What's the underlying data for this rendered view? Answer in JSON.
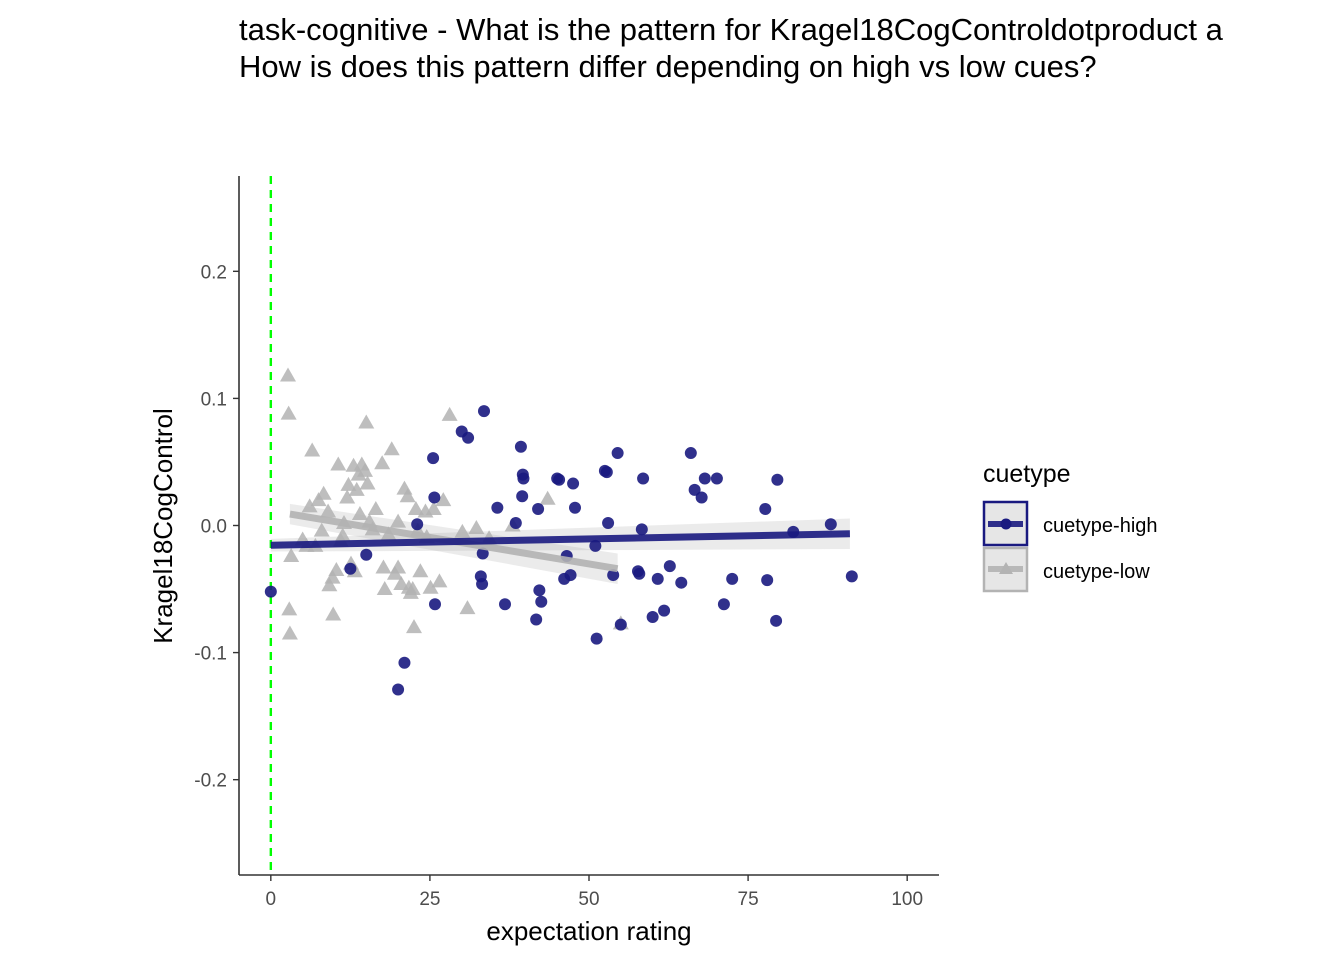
{
  "title": {
    "line1": "task-cognitive - What is the pattern for Kragel18CogControldotproduct a",
    "line2": "How is does this pattern differ depending on high vs low cues?"
  },
  "chart_data": {
    "type": "scatter",
    "title": "task-cognitive - What is the pattern for Kragel18CogControldotproduct a How is does this pattern differ depending on high vs low cues?",
    "xlabel": "expectation rating",
    "ylabel": "Kragel18CogControl",
    "xlim": [
      -5,
      105
    ],
    "ylim": [
      -0.275,
      0.275
    ],
    "x_ticks": [
      0,
      25,
      50,
      75,
      100
    ],
    "x_tick_labels": [
      "0",
      "25",
      "50",
      "75",
      "100"
    ],
    "y_ticks": [
      -0.2,
      -0.1,
      0.0,
      0.1,
      0.2
    ],
    "y_tick_labels": [
      "-0.2",
      "-0.1",
      "0.0",
      "0.1",
      "0.2"
    ],
    "grid": false,
    "vline": {
      "x": 0,
      "color": "#00ff00",
      "style": "dashed"
    },
    "legend": {
      "title": "cuetype",
      "position": "right"
    },
    "series": [
      {
        "name": "cuetype-high",
        "color": "#1a1a80",
        "marker": "circle",
        "trend": {
          "x": [
            0,
            91
          ],
          "y": [
            -0.0155,
            -0.0065
          ],
          "band": [
            0.005,
            0.012
          ]
        },
        "points": [
          [
            0,
            -0.052
          ],
          [
            12.5,
            -0.034
          ],
          [
            15,
            -0.023
          ],
          [
            20,
            -0.129
          ],
          [
            21,
            -0.108
          ],
          [
            23,
            0.001
          ],
          [
            25.5,
            0.053
          ],
          [
            25.7,
            0.022
          ],
          [
            25.8,
            -0.062
          ],
          [
            30,
            0.074
          ],
          [
            31,
            0.069
          ],
          [
            33,
            -0.04
          ],
          [
            33.2,
            -0.046
          ],
          [
            33.3,
            -0.022
          ],
          [
            33.5,
            0.09
          ],
          [
            35.6,
            0.014
          ],
          [
            36.8,
            -0.062
          ],
          [
            38.5,
            0.002
          ],
          [
            39.3,
            0.062
          ],
          [
            39.5,
            0.023
          ],
          [
            39.6,
            0.04
          ],
          [
            39.7,
            0.037
          ],
          [
            41.7,
            -0.074
          ],
          [
            42,
            0.013
          ],
          [
            42.2,
            -0.051
          ],
          [
            42.5,
            -0.06
          ],
          [
            45,
            0.037
          ],
          [
            45.3,
            0.036
          ],
          [
            46.1,
            -0.042
          ],
          [
            46.5,
            -0.024
          ],
          [
            47.1,
            -0.039
          ],
          [
            47.5,
            0.033
          ],
          [
            47.8,
            0.014
          ],
          [
            51,
            -0.016
          ],
          [
            51.2,
            -0.089
          ],
          [
            52.5,
            0.043
          ],
          [
            52.8,
            0.042
          ],
          [
            53,
            0.002
          ],
          [
            53.8,
            -0.039
          ],
          [
            54.5,
            0.057
          ],
          [
            55,
            -0.078
          ],
          [
            57.7,
            -0.036
          ],
          [
            57.9,
            -0.038
          ],
          [
            58.3,
            -0.003
          ],
          [
            58.5,
            0.037
          ],
          [
            60,
            -0.072
          ],
          [
            60.8,
            -0.042
          ],
          [
            61.8,
            -0.067
          ],
          [
            62.7,
            -0.032
          ],
          [
            64.5,
            -0.045
          ],
          [
            66,
            0.057
          ],
          [
            66.6,
            0.028
          ],
          [
            67.7,
            0.022
          ],
          [
            68.2,
            0.037
          ],
          [
            70.1,
            0.037
          ],
          [
            71.2,
            -0.062
          ],
          [
            72.5,
            -0.042
          ],
          [
            77.7,
            0.013
          ],
          [
            78,
            -0.043
          ],
          [
            79.4,
            -0.075
          ],
          [
            79.6,
            0.036
          ],
          [
            82.1,
            -0.005
          ],
          [
            88,
            0.001
          ],
          [
            91.3,
            -0.04
          ]
        ]
      },
      {
        "name": "cuetype-low",
        "color": "#b3b3b3",
        "marker": "triangle",
        "trend": {
          "x": [
            3,
            54.5
          ],
          "y": [
            0.009,
            -0.034
          ],
          "band": [
            0.008,
            0.012
          ]
        },
        "points": [
          [
            2.7,
            0.118
          ],
          [
            2.8,
            0.088
          ],
          [
            2.9,
            -0.066
          ],
          [
            3,
            -0.085
          ],
          [
            3.2,
            -0.024
          ],
          [
            5,
            -0.011
          ],
          [
            5.6,
            -0.016
          ],
          [
            6.1,
            0.015
          ],
          [
            6.5,
            0.059
          ],
          [
            7,
            -0.016
          ],
          [
            7.5,
            0.02
          ],
          [
            8,
            -0.004
          ],
          [
            8.3,
            0.025
          ],
          [
            9,
            0.011
          ],
          [
            9.2,
            -0.047
          ],
          [
            9.7,
            -0.041
          ],
          [
            9.8,
            -0.07
          ],
          [
            10.3,
            -0.035
          ],
          [
            10.6,
            0.048
          ],
          [
            11,
            -0.012
          ],
          [
            11.3,
            -0.008
          ],
          [
            11.5,
            0.002
          ],
          [
            12,
            0.022
          ],
          [
            12.2,
            0.032
          ],
          [
            12.6,
            -0.03
          ],
          [
            13,
            0.047
          ],
          [
            13.2,
            -0.036
          ],
          [
            13.5,
            0.028
          ],
          [
            13.8,
            0.04
          ],
          [
            14,
            0.009
          ],
          [
            14.3,
            0.048
          ],
          [
            14.8,
            0.043
          ],
          [
            15,
            0.081
          ],
          [
            15.2,
            0.033
          ],
          [
            15.5,
            0.003
          ],
          [
            16,
            -0.003
          ],
          [
            16.5,
            0.013
          ],
          [
            17.5,
            0.049
          ],
          [
            17.7,
            -0.033
          ],
          [
            17.9,
            -0.05
          ],
          [
            18.5,
            -0.007
          ],
          [
            19,
            0.06
          ],
          [
            19.5,
            -0.038
          ],
          [
            20,
            0.003
          ],
          [
            20,
            -0.033
          ],
          [
            20.5,
            -0.046
          ],
          [
            21,
            0.029
          ],
          [
            21.5,
            0.023
          ],
          [
            21.7,
            -0.049
          ],
          [
            22,
            -0.053
          ],
          [
            22.3,
            -0.05
          ],
          [
            22.5,
            -0.08
          ],
          [
            22.8,
            0.013
          ],
          [
            23.1,
            -0.004
          ],
          [
            23.5,
            -0.036
          ],
          [
            24.3,
            0.011
          ],
          [
            24.5,
            -0.009
          ],
          [
            25.1,
            -0.049
          ],
          [
            25.6,
            0.013
          ],
          [
            26.5,
            -0.044
          ],
          [
            27.1,
            0.02
          ],
          [
            28.1,
            0.087
          ],
          [
            30.1,
            -0.005
          ],
          [
            30.9,
            -0.065
          ],
          [
            32.3,
            -0.002
          ],
          [
            34.3,
            -0.01
          ],
          [
            38,
            0.0
          ],
          [
            43.5,
            0.021
          ],
          [
            55,
            -0.077
          ]
        ]
      }
    ]
  }
}
